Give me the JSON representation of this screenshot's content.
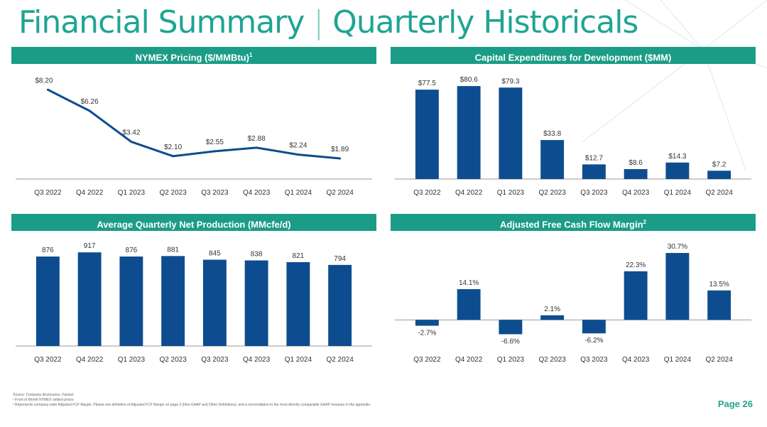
{
  "header": {
    "title": "Financial Summary",
    "subtitle": "Quarterly Historicals"
  },
  "colors": {
    "accent": "#1fa592",
    "header_bar": "#1b9c87",
    "series": "#0d4d8f"
  },
  "chart_data": [
    {
      "type": "line",
      "title": "NYMEX Pricing ($/MMBtu)",
      "title_sup": "1",
      "categories": [
        "Q3 2022",
        "Q4 2022",
        "Q1 2023",
        "Q2 2023",
        "Q3 2023",
        "Q4 2023",
        "Q1 2024",
        "Q2 2024"
      ],
      "values": [
        8.2,
        6.26,
        3.42,
        2.1,
        2.55,
        2.88,
        2.24,
        1.89
      ],
      "labels": [
        "$8.20",
        "$6.26",
        "$3.42",
        "$2.10",
        "$2.55",
        "$2.88",
        "$2.24",
        "$1.89"
      ],
      "ylim": [
        0,
        9
      ],
      "grid": false,
      "legend": "none"
    },
    {
      "type": "bar",
      "title": "Capital Expenditures for Development ($MM)",
      "title_sup": "",
      "categories": [
        "Q3 2022",
        "Q4 2022",
        "Q1 2023",
        "Q2 2023",
        "Q3 2023",
        "Q4 2023",
        "Q1 2024",
        "Q2 2024"
      ],
      "values": [
        77.5,
        80.6,
        79.3,
        33.8,
        12.7,
        8.6,
        14.3,
        7.2
      ],
      "labels": [
        "$77.5",
        "$80.6",
        "$79.3",
        "$33.8",
        "$12.7",
        "$8.6",
        "$14.3",
        "$7.2"
      ],
      "ylim": [
        0,
        85
      ],
      "grid": false,
      "legend": "none"
    },
    {
      "type": "bar",
      "title": "Average Quarterly Net Production (MMcfe/d)",
      "title_sup": "",
      "categories": [
        "Q3 2022",
        "Q4 2022",
        "Q1 2023",
        "Q2 2023",
        "Q3 2023",
        "Q4 2023",
        "Q1 2024",
        "Q2 2024"
      ],
      "values": [
        876,
        917,
        876,
        881,
        845,
        838,
        821,
        794
      ],
      "labels": [
        "876",
        "917",
        "876",
        "881",
        "845",
        "838",
        "821",
        "794"
      ],
      "ylim": [
        0,
        960
      ],
      "grid": false,
      "legend": "none"
    },
    {
      "type": "bar",
      "title": "Adjusted Free Cash Flow Margin",
      "title_sup": "2",
      "categories": [
        "Q3 2022",
        "Q4 2022",
        "Q1 2023",
        "Q2 2023",
        "Q3 2023",
        "Q4 2023",
        "Q1 2024",
        "Q2 2024"
      ],
      "values": [
        -2.7,
        14.1,
        -6.6,
        2.1,
        -6.2,
        22.3,
        30.7,
        13.5
      ],
      "labels": [
        "-2.7%",
        "14.1%",
        "-6.6%",
        "2.1%",
        "-6.2%",
        "22.3%",
        "30.7%",
        "13.5%"
      ],
      "ylim": [
        -12,
        33
      ],
      "grid": false,
      "legend": "none"
    }
  ],
  "footnotes": [
    "Source: Company disclosures, Factset",
    "¹ Front of Month NYMEX settled prices",
    "² Represents company-wide Adjusted FCF Margin. Please see definition of Adjusted FCF Margin on page 3 (Non-GAAP and Other Definitions), and a reconciliation to the most directly comparable GAAP measure in the appendix."
  ],
  "page_label": "Page 26"
}
